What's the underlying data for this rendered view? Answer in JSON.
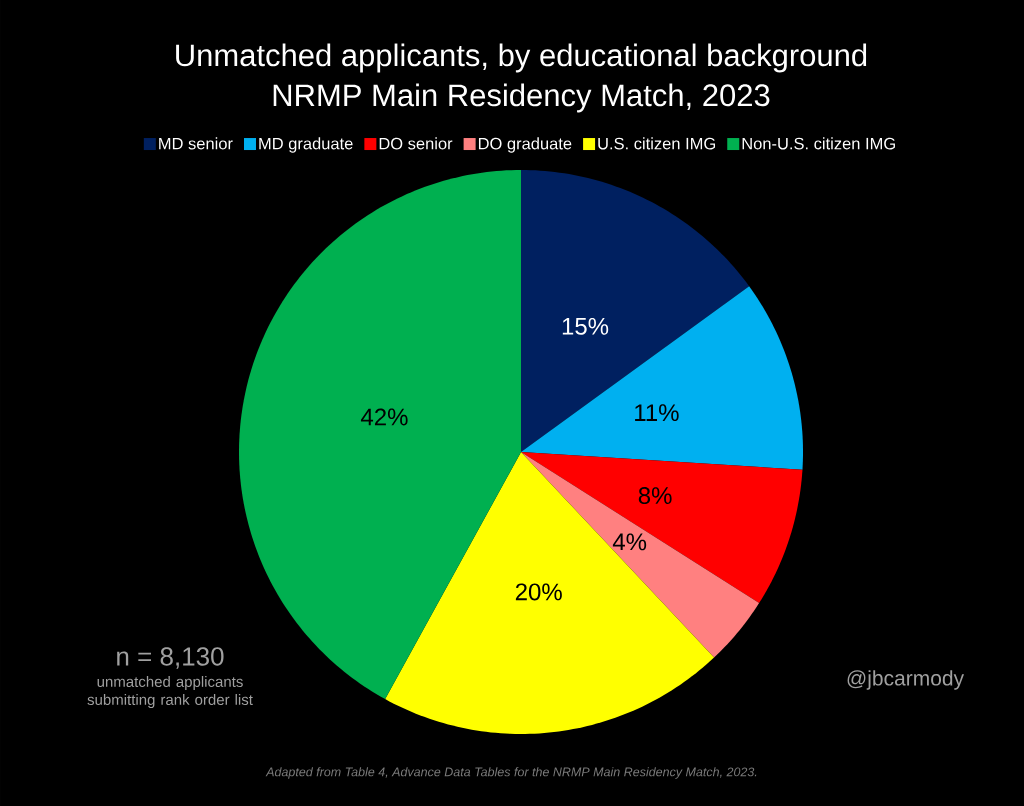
{
  "chart_data": {
    "type": "pie",
    "title": "Unmatched applicants, by educational background",
    "subtitle": "NRMP Main Residency Match, 2023",
    "categories": [
      "MD senior",
      "MD graduate",
      "DO senior",
      "DO graduate",
      "U.S. citizen IMG",
      "Non-U.S. citizen IMG"
    ],
    "values": [
      15,
      11,
      8,
      4,
      20,
      42
    ],
    "colors": [
      "#002060",
      "#00b0f0",
      "#ff0000",
      "#ff8080",
      "#ffff00",
      "#00b050"
    ],
    "value_labels": [
      "15%",
      "11%",
      "8%",
      "4%",
      "20%",
      "42%"
    ],
    "legend": "top",
    "annotations": [
      "n = 8,130",
      "unmatched applicants submitting rank order list",
      "@jbcarmody",
      "Adapted from Table 4, Advance Data Tables for the NRMP Main Residency Match, 2023."
    ]
  }
}
